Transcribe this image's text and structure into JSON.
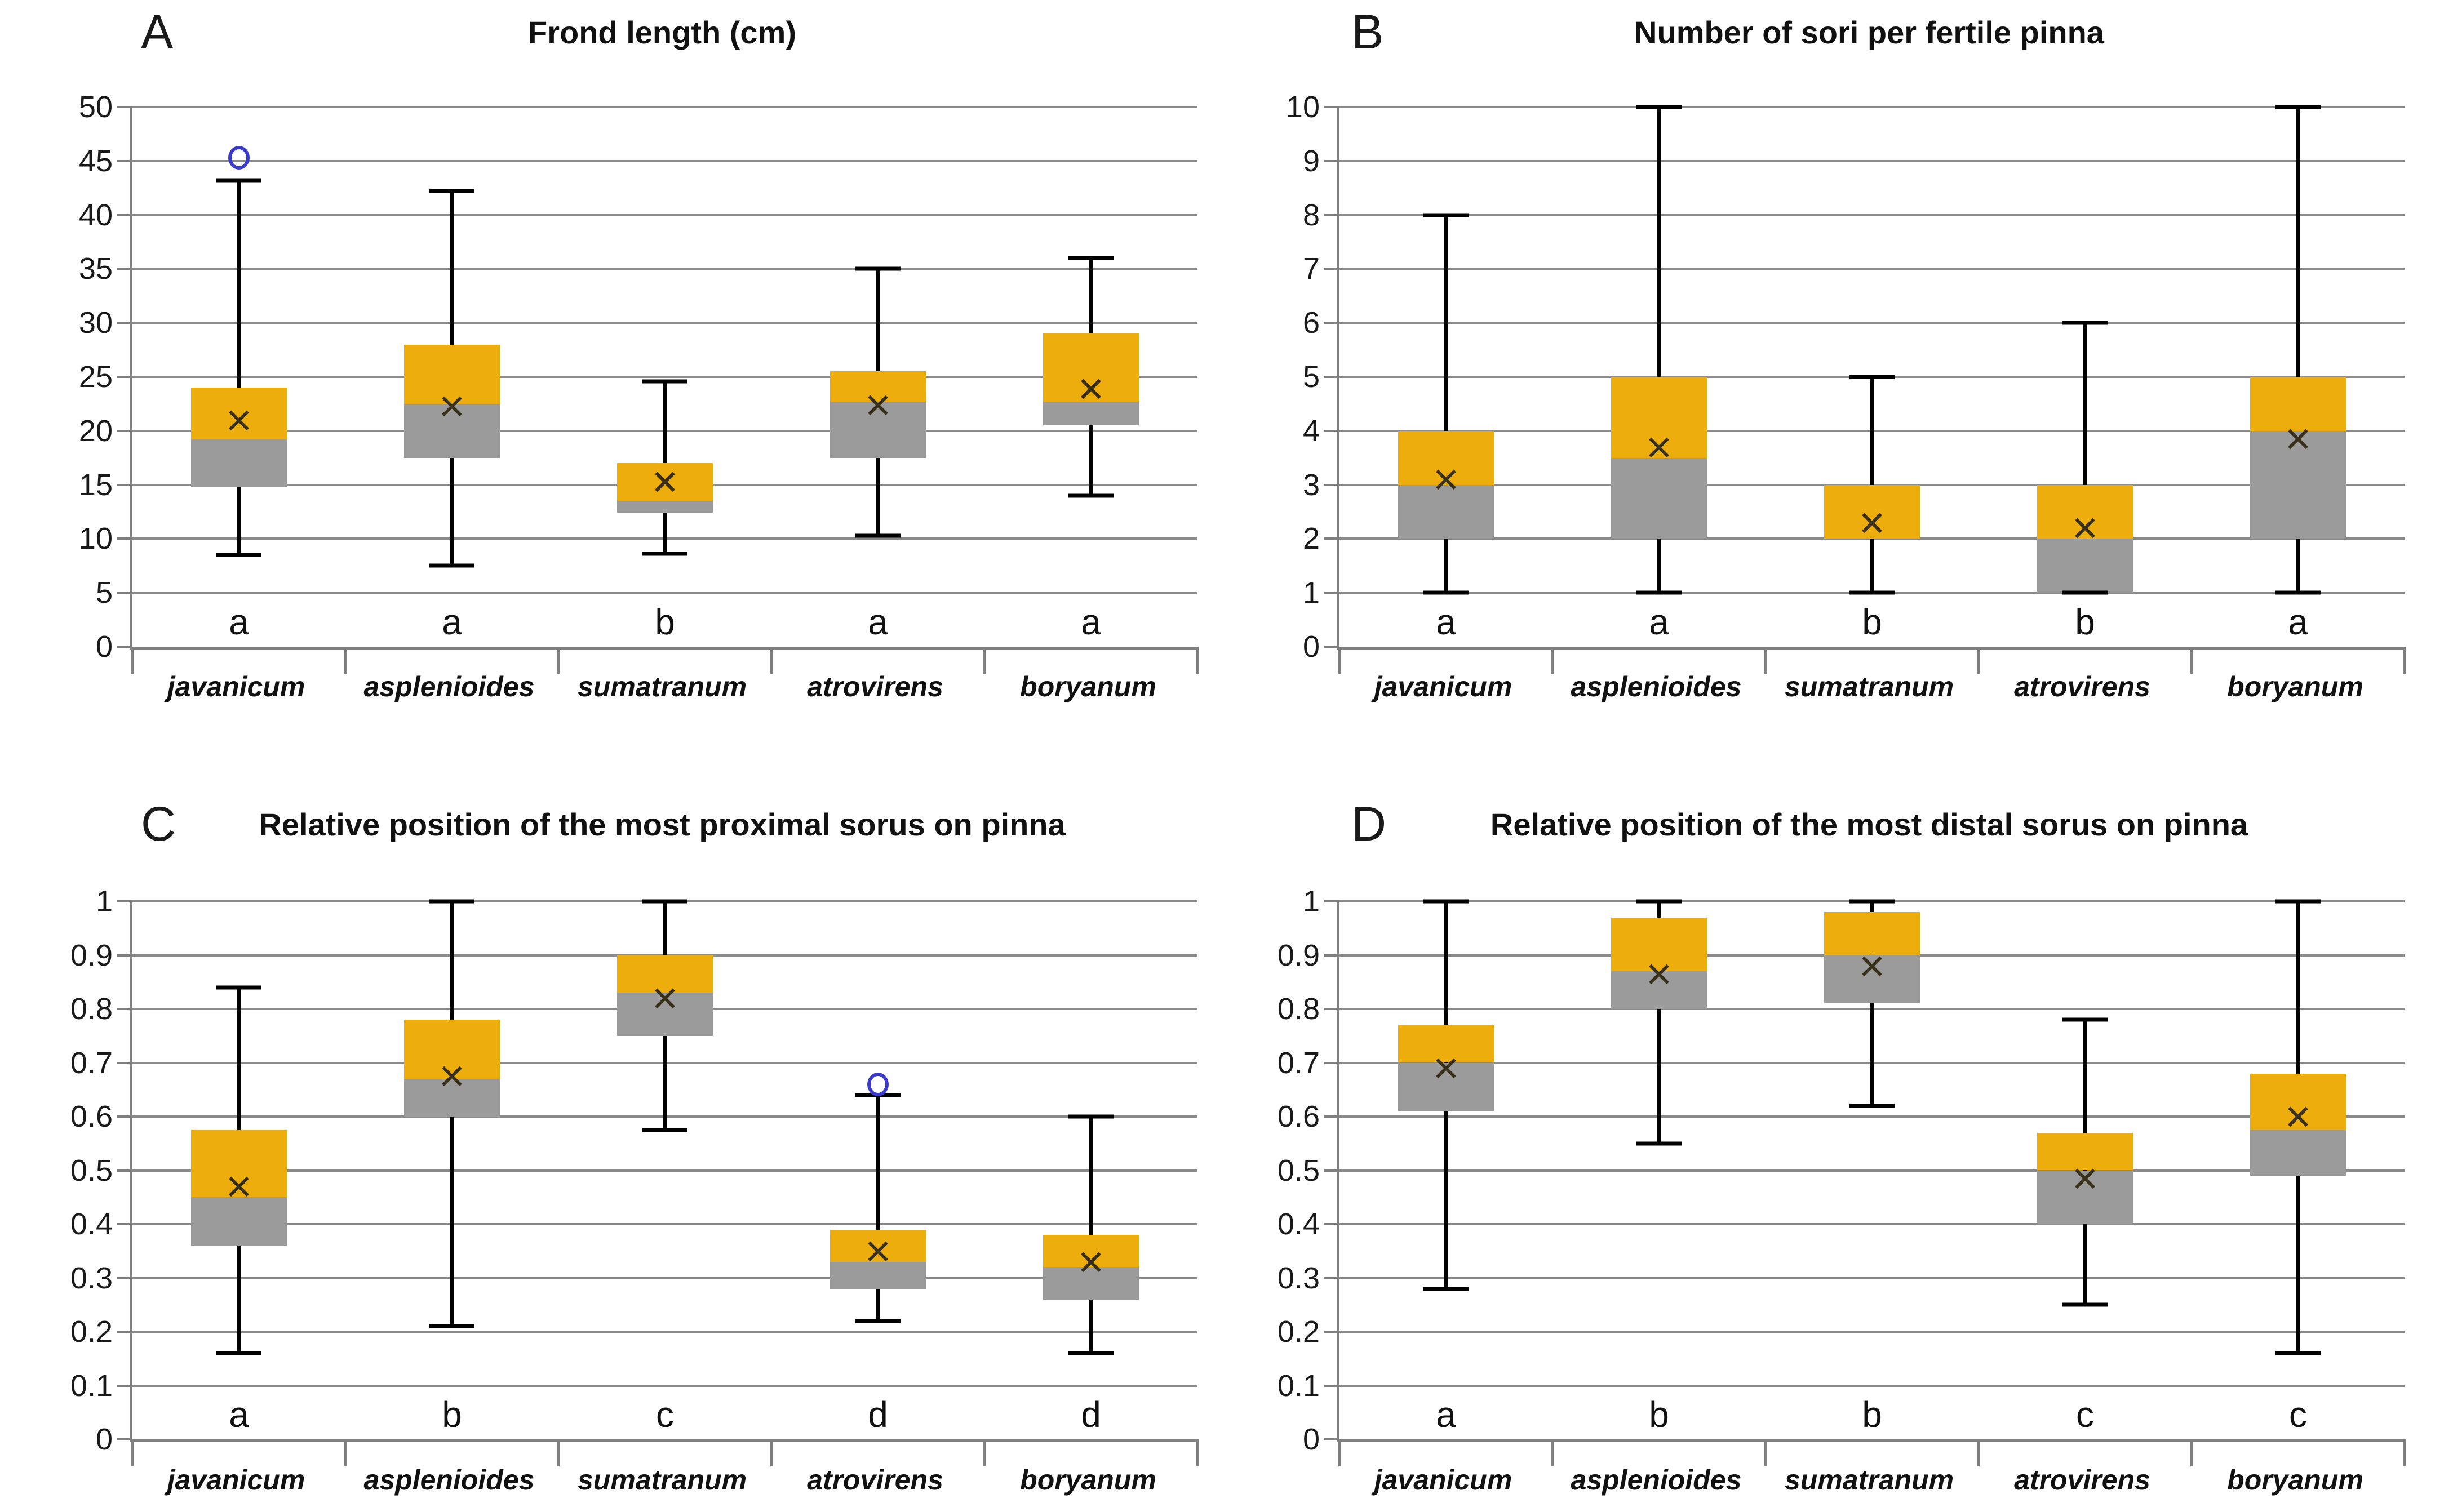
{
  "figure": {
    "background": "#FFFFFF"
  },
  "colors": {
    "box_upper": "#EDAE0D",
    "box_lower": "#9B9B9B",
    "whisker": "#000000",
    "gridline": "#8A8A8A",
    "axis": "#7F7F7F",
    "mean_marker": "#39301A",
    "outlier": "#3A3ACD",
    "text": "#1A1A1A"
  },
  "icons": {
    "mean_marker_glyph": "×",
    "outlier_marker": "circle-outline"
  },
  "chart_data": [
    {
      "type": "box",
      "panel_label": "A",
      "title": "Frond length (cm)",
      "ylim": [
        0,
        50
      ],
      "ystep": 5,
      "grid": true,
      "legend": "none",
      "series": [
        {
          "name": "javanicum",
          "letter": "a",
          "min": 8.5,
          "q1": 14.8,
          "median": 19.2,
          "q3": 24,
          "max": 43.2,
          "mean": 21,
          "outliers": [
            45.3
          ]
        },
        {
          "name": "asplenioides",
          "letter": "a",
          "min": 7.5,
          "q1": 17.5,
          "median": 22.5,
          "q3": 28,
          "max": 42.2,
          "mean": 22.3,
          "outliers": []
        },
        {
          "name": "sumatranum",
          "letter": "b",
          "min": 8.6,
          "q1": 12.4,
          "median": 13.5,
          "q3": 17,
          "max": 24.6,
          "mean": 15.3,
          "outliers": []
        },
        {
          "name": "atrovirens",
          "letter": "a",
          "min": 10.3,
          "q1": 17.5,
          "median": 22.7,
          "q3": 25.5,
          "max": 35,
          "mean": 22.4,
          "outliers": []
        },
        {
          "name": "boryanum",
          "letter": "a",
          "min": 14,
          "q1": 20.5,
          "median": 22.7,
          "q3": 29,
          "max": 36,
          "mean": 23.9,
          "outliers": []
        }
      ]
    },
    {
      "type": "box",
      "panel_label": "B",
      "title": "Number of sori per fertile pinna",
      "ylim": [
        0,
        10
      ],
      "ystep": 1,
      "grid": true,
      "legend": "none",
      "series": [
        {
          "name": "javanicum",
          "letter": "a",
          "min": 1,
          "q1": 2,
          "median": 3,
          "q3": 4,
          "max": 8,
          "mean": 3.1,
          "outliers": []
        },
        {
          "name": "asplenioides",
          "letter": "a",
          "min": 1,
          "q1": 2,
          "median": 3.5,
          "q3": 5,
          "max": 10,
          "mean": 3.7,
          "outliers": []
        },
        {
          "name": "sumatranum",
          "letter": "b",
          "min": 1,
          "q1": 2,
          "median": 2,
          "q3": 3,
          "max": 5,
          "mean": 2.3,
          "outliers": []
        },
        {
          "name": "atrovirens",
          "letter": "b",
          "min": 1,
          "q1": 1,
          "median": 2,
          "q3": 3,
          "max": 6,
          "mean": 2.2,
          "outliers": []
        },
        {
          "name": "boryanum",
          "letter": "a",
          "min": 1,
          "q1": 2,
          "median": 4,
          "q3": 5,
          "max": 10,
          "mean": 3.85,
          "outliers": []
        }
      ]
    },
    {
      "type": "box",
      "panel_label": "C",
      "title": "Relative position of the most proximal sorus on pinna",
      "ylim": [
        0,
        1
      ],
      "ystep": 0.1,
      "grid": true,
      "legend": "none",
      "series": [
        {
          "name": "javanicum",
          "letter": "a",
          "min": 0.16,
          "q1": 0.36,
          "median": 0.45,
          "q3": 0.575,
          "max": 0.84,
          "mean": 0.47,
          "outliers": []
        },
        {
          "name": "asplenioides",
          "letter": "b",
          "min": 0.21,
          "q1": 0.6,
          "median": 0.67,
          "q3": 0.78,
          "max": 1,
          "mean": 0.675,
          "outliers": []
        },
        {
          "name": "sumatranum",
          "letter": "c",
          "min": 0.575,
          "q1": 0.75,
          "median": 0.83,
          "q3": 0.9,
          "max": 1,
          "mean": 0.82,
          "outliers": []
        },
        {
          "name": "atrovirens",
          "letter": "d",
          "min": 0.22,
          "q1": 0.28,
          "median": 0.33,
          "q3": 0.39,
          "max": 0.64,
          "mean": 0.35,
          "outliers": [
            0.66
          ]
        },
        {
          "name": "boryanum",
          "letter": "d",
          "min": 0.16,
          "q1": 0.26,
          "median": 0.32,
          "q3": 0.38,
          "max": 0.6,
          "mean": 0.33,
          "outliers": []
        }
      ]
    },
    {
      "type": "box",
      "panel_label": "D",
      "title": "Relative position of the most distal sorus on pinna",
      "ylim": [
        0,
        1
      ],
      "ystep": 0.1,
      "grid": true,
      "legend": "none",
      "series": [
        {
          "name": "javanicum",
          "letter": "a",
          "min": 0.28,
          "q1": 0.61,
          "median": 0.7,
          "q3": 0.77,
          "max": 1,
          "mean": 0.69,
          "outliers": []
        },
        {
          "name": "asplenioides",
          "letter": "b",
          "min": 0.55,
          "q1": 0.8,
          "median": 0.87,
          "q3": 0.97,
          "max": 1,
          "mean": 0.865,
          "outliers": []
        },
        {
          "name": "sumatranum",
          "letter": "b",
          "min": 0.62,
          "q1": 0.81,
          "median": 0.9,
          "q3": 0.98,
          "max": 1,
          "mean": 0.88,
          "outliers": []
        },
        {
          "name": "atrovirens",
          "letter": "c",
          "min": 0.25,
          "q1": 0.4,
          "median": 0.5,
          "q3": 0.57,
          "max": 0.78,
          "mean": 0.485,
          "outliers": []
        },
        {
          "name": "boryanum",
          "letter": "c",
          "min": 0.16,
          "q1": 0.49,
          "median": 0.575,
          "q3": 0.68,
          "max": 1,
          "mean": 0.6,
          "outliers": []
        }
      ]
    }
  ]
}
